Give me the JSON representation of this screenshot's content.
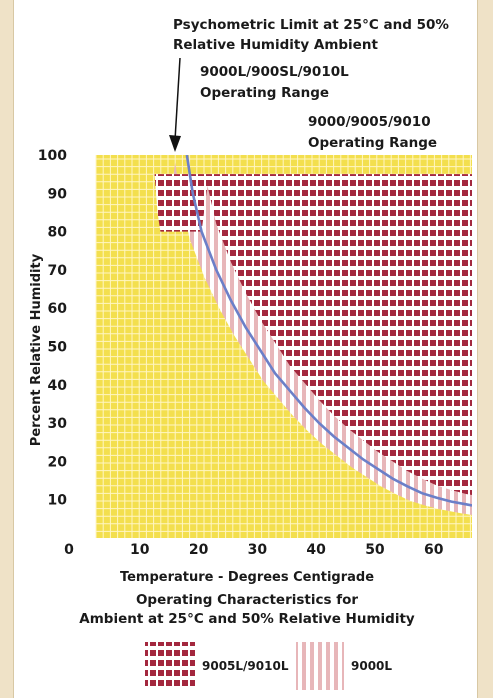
{
  "chart_data": {
    "type": "area",
    "xlabel": "Temperature - Degrees Centigrade",
    "ylabel": "Percent Relative Humidity",
    "xlim": [
      0,
      66
    ],
    "ylim": [
      0,
      100
    ],
    "x_ticks": [
      "0",
      "10",
      "20",
      "30",
      "40",
      "50",
      "60"
    ],
    "y_ticks": [
      "10",
      "20",
      "30",
      "40",
      "50",
      "60",
      "70",
      "80",
      "90",
      "100"
    ],
    "annotations": {
      "psychrometric_limit": "Psychometric Limit at 25°C and 50% Relative Humidity Ambient",
      "range_l": "9000L/900SL/9010L Operating Range",
      "range_std": "9000/9005/9010 Operating Range"
    },
    "caption": [
      "Operating Characteristics for",
      "Ambient at 25°C and 50% Relative Humidity"
    ],
    "legend": [
      {
        "label": "9005L/9010L",
        "pattern": "horizontal-stripes"
      },
      {
        "label": "9000L",
        "pattern": "vertical-stripes"
      }
    ],
    "background_range": {
      "x": [
        0,
        66
      ],
      "y": [
        0,
        100
      ]
    },
    "operating_range_outer": {
      "rh_max": 95,
      "left_edge": [
        [
          12,
          95
        ],
        [
          13,
          85
        ],
        [
          14,
          80
        ]
      ]
    },
    "psychrometric_curve": {
      "x": [
        17.5,
        18.5,
        20,
        22.5,
        25,
        27.5,
        30,
        32.5,
        35,
        37.5,
        40,
        42.5,
        45,
        47.5,
        50,
        52.5,
        55,
        57.5,
        60,
        62.5,
        65,
        66
      ],
      "y": [
        100,
        90,
        80,
        70,
        62,
        55,
        49,
        43,
        38.5,
        34,
        30,
        26.5,
        23.5,
        20.5,
        18,
        15.5,
        13.5,
        11.7,
        10.5,
        9.5,
        8.8,
        8.5
      ]
    },
    "colors": {
      "background": "#f3df4e",
      "grid": "#fff6c4",
      "stripe": "#a3283e",
      "stripe_light": "#e7b6b9",
      "curve": "#6b7fc8"
    }
  }
}
